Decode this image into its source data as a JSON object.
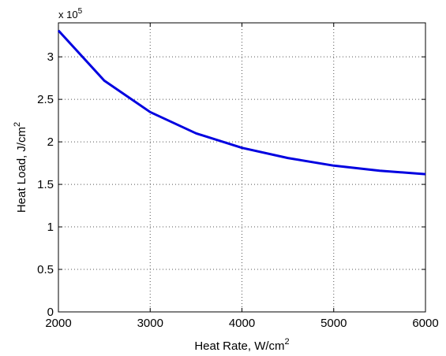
{
  "chart_data": {
    "type": "line",
    "title": "",
    "xlabel": "Heat Rate, W/cm",
    "xlabel_sup": "2",
    "ylabel": "Heat Load, J/cm",
    "ylabel_sup": "2",
    "y_multiplier_text": "x 10",
    "y_multiplier_exp": "5",
    "xlim": [
      2000,
      6000
    ],
    "ylim": [
      0,
      3.4
    ],
    "xticks": [
      2000,
      3000,
      4000,
      5000,
      6000
    ],
    "xtick_labels": [
      "2000",
      "3000",
      "4000",
      "5000",
      "6000"
    ],
    "yticks": [
      0,
      0.5,
      1,
      1.5,
      2,
      2.5,
      3
    ],
    "ytick_labels": [
      "0",
      "0.5",
      "1",
      "1.5",
      "2",
      "2.5",
      "3"
    ],
    "grid": true,
    "series": [
      {
        "color": "#0000e0",
        "x": [
          2000,
          2500,
          3000,
          3500,
          4000,
          4500,
          5000,
          5500,
          6000
        ],
        "y": [
          3.31,
          2.72,
          2.35,
          2.1,
          1.93,
          1.81,
          1.72,
          1.66,
          1.62
        ]
      }
    ]
  }
}
